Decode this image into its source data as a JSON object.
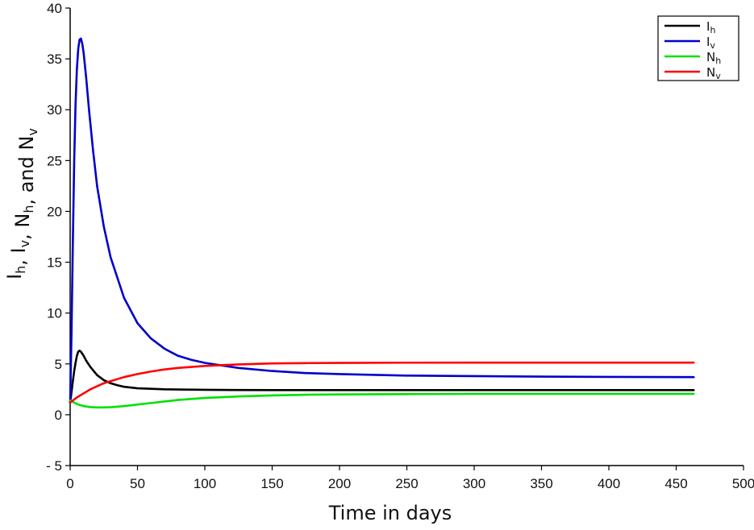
{
  "chart_data": {
    "type": "line",
    "xlabel": "Time in days",
    "ylabel": {
      "parts": [
        {
          "base": "I",
          "sub": "h"
        },
        {
          "sep": ", "
        },
        {
          "base": "I",
          "sub": "v"
        },
        {
          "sep": ", "
        },
        {
          "base": "N",
          "sub": "h"
        },
        {
          "sep": ", and "
        },
        {
          "base": "N",
          "sub": "v"
        }
      ]
    },
    "xlim": [
      0,
      500
    ],
    "ylim": [
      -5,
      40
    ],
    "xticks": [
      0,
      50,
      100,
      150,
      200,
      250,
      300,
      350,
      400,
      450,
      500
    ],
    "yticks": [
      -5,
      0,
      5,
      10,
      15,
      20,
      25,
      30,
      35,
      40
    ],
    "ytick_labels": [
      "- 5",
      "0",
      "5",
      "10",
      "15",
      "20",
      "25",
      "30",
      "35",
      "40"
    ],
    "grid": false,
    "legend_position": "top-right",
    "series": [
      {
        "name": "I",
        "name_sub": "h",
        "color": "#000000",
        "x": [
          0,
          1,
          2,
          3,
          4,
          5,
          6,
          7,
          8,
          10,
          12,
          15,
          20,
          25,
          30,
          35,
          40,
          50,
          60,
          70,
          80,
          100,
          120,
          150,
          200,
          250,
          300,
          350,
          400,
          463
        ],
        "y": [
          1.2,
          2.2,
          3.3,
          4.3,
          5.1,
          5.8,
          6.2,
          6.3,
          6.2,
          5.8,
          5.3,
          4.7,
          3.9,
          3.4,
          3.1,
          2.9,
          2.75,
          2.6,
          2.55,
          2.5,
          2.48,
          2.45,
          2.43,
          2.42,
          2.42,
          2.42,
          2.42,
          2.42,
          2.42,
          2.42
        ]
      },
      {
        "name": "I",
        "name_sub": "v",
        "color": "#0000cc",
        "x": [
          0,
          1,
          2,
          3,
          4,
          5,
          6,
          7,
          8,
          9,
          10,
          12,
          14,
          17,
          20,
          25,
          30,
          40,
          50,
          60,
          70,
          80,
          90,
          100,
          110,
          125,
          150,
          175,
          200,
          250,
          300,
          350,
          400,
          463
        ],
        "y": [
          1.2,
          8,
          17,
          25,
          30.5,
          34,
          36,
          36.9,
          37,
          36.5,
          35.6,
          33,
          30,
          26,
          22.5,
          18.5,
          15.5,
          11.5,
          9.0,
          7.5,
          6.5,
          5.8,
          5.4,
          5.1,
          4.9,
          4.6,
          4.3,
          4.1,
          4.0,
          3.85,
          3.8,
          3.75,
          3.72,
          3.7
        ]
      },
      {
        "name": "N",
        "name_sub": "h",
        "color": "#00e000",
        "x": [
          0,
          5,
          10,
          15,
          20,
          25,
          30,
          40,
          50,
          60,
          80,
          100,
          125,
          150,
          175,
          200,
          250,
          300,
          350,
          400,
          463
        ],
        "y": [
          1.4,
          1.05,
          0.85,
          0.75,
          0.72,
          0.72,
          0.74,
          0.85,
          1.0,
          1.15,
          1.45,
          1.65,
          1.8,
          1.9,
          1.97,
          2.0,
          2.03,
          2.05,
          2.05,
          2.05,
          2.05
        ]
      },
      {
        "name": "N",
        "name_sub": "v",
        "color": "#ff0000",
        "x": [
          0,
          5,
          10,
          15,
          20,
          25,
          30,
          40,
          50,
          60,
          70,
          80,
          90,
          100,
          125,
          150,
          175,
          200,
          250,
          300,
          350,
          400,
          463
        ],
        "y": [
          1.2,
          1.7,
          2.1,
          2.5,
          2.8,
          3.1,
          3.3,
          3.7,
          4.0,
          4.25,
          4.45,
          4.6,
          4.7,
          4.8,
          4.95,
          5.05,
          5.08,
          5.1,
          5.12,
          5.13,
          5.13,
          5.13,
          5.13
        ]
      }
    ]
  }
}
